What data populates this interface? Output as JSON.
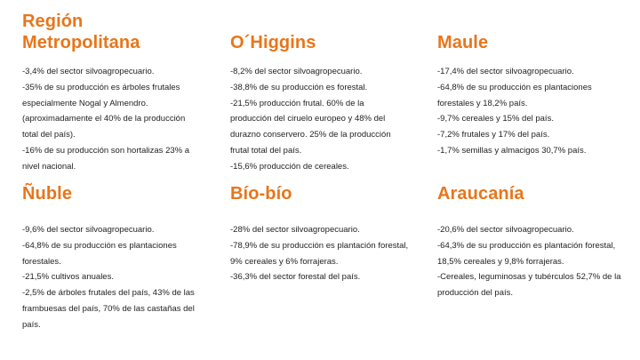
{
  "regions": [
    {
      "title": [
        "Región",
        "Metropolitana"
      ],
      "lines": [
        "-3,4% del sector silvoagropecuario.",
        "-35% de su producción es árboles frutales",
        "especialmente Nogal y Almendro.",
        "(aproximadamente el 40% de la producción",
        "total del país).",
        "-16%  de su producción son hortalizas 23% a",
        "nivel nacional."
      ]
    },
    {
      "title": [
        "O´Higgins"
      ],
      "lines": [
        "-8,2% del sector silvoagropecuario.",
        "-38,8% de su producción es forestal.",
        "-21,5% producción frutal. 60% de la",
        "producción del ciruelo europeo y 48% del",
        "durazno conservero. 25% de la producción",
        "frutal total del país.",
        "-15,6% producción de cereales."
      ]
    },
    {
      "title": [
        "Maule"
      ],
      "lines": [
        "-17,4% del sector silvoagropecuario.",
        "-64,8% de su producción es plantaciones",
        "forestales y 18,2% país.",
        "-9,7% cereales y 15% del país.",
        "-7,2% frutales y 17% del país.",
        "-1,7% semillas y almacigos 30,7% país."
      ]
    },
    {
      "title": [
        "Ñuble"
      ],
      "lines": [
        "-9,6% del sector silvoagropecuario.",
        "-64,8% de su producción es plantaciones",
        "forestales.",
        "-21,5% cultivos anuales.",
        "-2,5% de árboles frutales del país, 43% de las",
        "frambuesas del país, 70% de las castañas del",
        "país."
      ]
    },
    {
      "title": [
        "Bío-bío"
      ],
      "lines": [
        "-28% del sector silvoagropecuario.",
        "-78,9% de su producción es plantación forestal,",
        "9% cereales y 6% forrajeras.",
        "-36,3% del sector forestal del país."
      ]
    },
    {
      "title": [
        "Araucanía"
      ],
      "lines": [
        "-20,6% del sector silvoagropecuario.",
        "-64,3% de su producción es plantación forestal,",
        "18,5% cereales y 9,8% forrajeras.",
        "-Cereales, leguminosas y tubérculos 52,7% de la",
        "producción del país."
      ]
    }
  ]
}
